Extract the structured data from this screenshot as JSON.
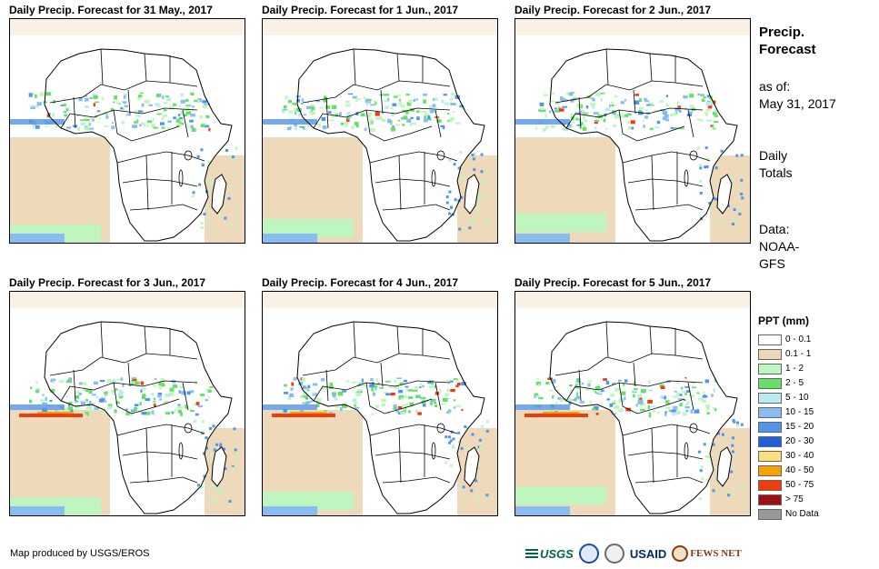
{
  "panels": [
    {
      "title": "Daily Precip. Forecast for 31 May., 2017"
    },
    {
      "title": "Daily Precip. Forecast for 1 Jun., 2017"
    },
    {
      "title": "Daily Precip. Forecast for 2 Jun., 2017"
    },
    {
      "title": "Daily Precip. Forecast for 3 Jun., 2017"
    },
    {
      "title": "Daily Precip. Forecast for 4 Jun., 2017"
    },
    {
      "title": "Daily Precip. Forecast for 5 Jun., 2017"
    }
  ],
  "side": {
    "title_line1": "Precip.",
    "title_line2": "Forecast",
    "asof_label": "as of:",
    "asof_date": "May 31, 2017",
    "totals_line1": "Daily",
    "totals_line2": "Totals",
    "data_line1": "Data:",
    "data_line2": "NOAA-",
    "data_line3": "GFS"
  },
  "legend": {
    "title": "PPT (mm)",
    "items": [
      {
        "label": "0 - 0.1",
        "color": "#ffffff"
      },
      {
        "label": "0.1 - 1",
        "color": "#ecd6b3"
      },
      {
        "label": "1 - 2",
        "color": "#bff5bf"
      },
      {
        "label": "2 - 5",
        "color": "#66e066"
      },
      {
        "label": "5 - 10",
        "color": "#b8ecf2"
      },
      {
        "label": "10 - 15",
        "color": "#87bdf2"
      },
      {
        "label": "15 - 20",
        "color": "#4f94ee"
      },
      {
        "label": "20 - 30",
        "color": "#1f5fdc"
      },
      {
        "label": "30 - 40",
        "color": "#fbe07a"
      },
      {
        "label": "40 - 50",
        "color": "#f5a300"
      },
      {
        "label": "50 - 75",
        "color": "#f03c0a"
      },
      {
        "label": "> 75",
        "color": "#a01010"
      },
      {
        "label": "No Data",
        "color": "#999999"
      }
    ]
  },
  "footer": {
    "credit": "Map produced by USGS/EROS"
  },
  "logos": {
    "usgs": "USGS",
    "usaid": "USAID",
    "fews": "FEWS NET"
  }
}
